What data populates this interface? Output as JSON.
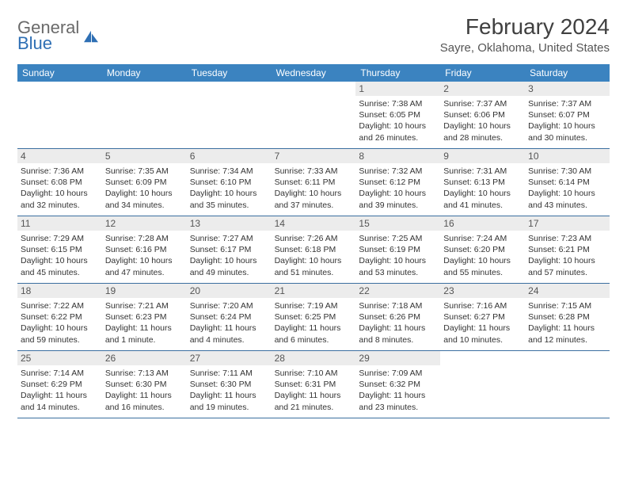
{
  "colors": {
    "header_bg": "#3b83c0",
    "header_text": "#ffffff",
    "daynum_bg": "#ececec",
    "week_border": "#3b6fa0",
    "body_text": "#333333",
    "title_text": "#404040",
    "logo_gray": "#6a6a6a",
    "logo_blue": "#2e6fb4"
  },
  "logo": {
    "line1": "General",
    "line2": "Blue"
  },
  "title": "February 2024",
  "location": "Sayre, Oklahoma, United States",
  "weekdays": [
    "Sunday",
    "Monday",
    "Tuesday",
    "Wednesday",
    "Thursday",
    "Friday",
    "Saturday"
  ],
  "labels": {
    "sunrise": "Sunrise:",
    "sunset": "Sunset:",
    "daylight": "Daylight:"
  },
  "weeks": [
    [
      null,
      null,
      null,
      null,
      {
        "n": "1",
        "sunrise": "7:38 AM",
        "sunset": "6:05 PM",
        "daylight": "10 hours and 26 minutes."
      },
      {
        "n": "2",
        "sunrise": "7:37 AM",
        "sunset": "6:06 PM",
        "daylight": "10 hours and 28 minutes."
      },
      {
        "n": "3",
        "sunrise": "7:37 AM",
        "sunset": "6:07 PM",
        "daylight": "10 hours and 30 minutes."
      }
    ],
    [
      {
        "n": "4",
        "sunrise": "7:36 AM",
        "sunset": "6:08 PM",
        "daylight": "10 hours and 32 minutes."
      },
      {
        "n": "5",
        "sunrise": "7:35 AM",
        "sunset": "6:09 PM",
        "daylight": "10 hours and 34 minutes."
      },
      {
        "n": "6",
        "sunrise": "7:34 AM",
        "sunset": "6:10 PM",
        "daylight": "10 hours and 35 minutes."
      },
      {
        "n": "7",
        "sunrise": "7:33 AM",
        "sunset": "6:11 PM",
        "daylight": "10 hours and 37 minutes."
      },
      {
        "n": "8",
        "sunrise": "7:32 AM",
        "sunset": "6:12 PM",
        "daylight": "10 hours and 39 minutes."
      },
      {
        "n": "9",
        "sunrise": "7:31 AM",
        "sunset": "6:13 PM",
        "daylight": "10 hours and 41 minutes."
      },
      {
        "n": "10",
        "sunrise": "7:30 AM",
        "sunset": "6:14 PM",
        "daylight": "10 hours and 43 minutes."
      }
    ],
    [
      {
        "n": "11",
        "sunrise": "7:29 AM",
        "sunset": "6:15 PM",
        "daylight": "10 hours and 45 minutes."
      },
      {
        "n": "12",
        "sunrise": "7:28 AM",
        "sunset": "6:16 PM",
        "daylight": "10 hours and 47 minutes."
      },
      {
        "n": "13",
        "sunrise": "7:27 AM",
        "sunset": "6:17 PM",
        "daylight": "10 hours and 49 minutes."
      },
      {
        "n": "14",
        "sunrise": "7:26 AM",
        "sunset": "6:18 PM",
        "daylight": "10 hours and 51 minutes."
      },
      {
        "n": "15",
        "sunrise": "7:25 AM",
        "sunset": "6:19 PM",
        "daylight": "10 hours and 53 minutes."
      },
      {
        "n": "16",
        "sunrise": "7:24 AM",
        "sunset": "6:20 PM",
        "daylight": "10 hours and 55 minutes."
      },
      {
        "n": "17",
        "sunrise": "7:23 AM",
        "sunset": "6:21 PM",
        "daylight": "10 hours and 57 minutes."
      }
    ],
    [
      {
        "n": "18",
        "sunrise": "7:22 AM",
        "sunset": "6:22 PM",
        "daylight": "10 hours and 59 minutes."
      },
      {
        "n": "19",
        "sunrise": "7:21 AM",
        "sunset": "6:23 PM",
        "daylight": "11 hours and 1 minute."
      },
      {
        "n": "20",
        "sunrise": "7:20 AM",
        "sunset": "6:24 PM",
        "daylight": "11 hours and 4 minutes."
      },
      {
        "n": "21",
        "sunrise": "7:19 AM",
        "sunset": "6:25 PM",
        "daylight": "11 hours and 6 minutes."
      },
      {
        "n": "22",
        "sunrise": "7:18 AM",
        "sunset": "6:26 PM",
        "daylight": "11 hours and 8 minutes."
      },
      {
        "n": "23",
        "sunrise": "7:16 AM",
        "sunset": "6:27 PM",
        "daylight": "11 hours and 10 minutes."
      },
      {
        "n": "24",
        "sunrise": "7:15 AM",
        "sunset": "6:28 PM",
        "daylight": "11 hours and 12 minutes."
      }
    ],
    [
      {
        "n": "25",
        "sunrise": "7:14 AM",
        "sunset": "6:29 PM",
        "daylight": "11 hours and 14 minutes."
      },
      {
        "n": "26",
        "sunrise": "7:13 AM",
        "sunset": "6:30 PM",
        "daylight": "11 hours and 16 minutes."
      },
      {
        "n": "27",
        "sunrise": "7:11 AM",
        "sunset": "6:30 PM",
        "daylight": "11 hours and 19 minutes."
      },
      {
        "n": "28",
        "sunrise": "7:10 AM",
        "sunset": "6:31 PM",
        "daylight": "11 hours and 21 minutes."
      },
      {
        "n": "29",
        "sunrise": "7:09 AM",
        "sunset": "6:32 PM",
        "daylight": "11 hours and 23 minutes."
      },
      null,
      null
    ]
  ]
}
